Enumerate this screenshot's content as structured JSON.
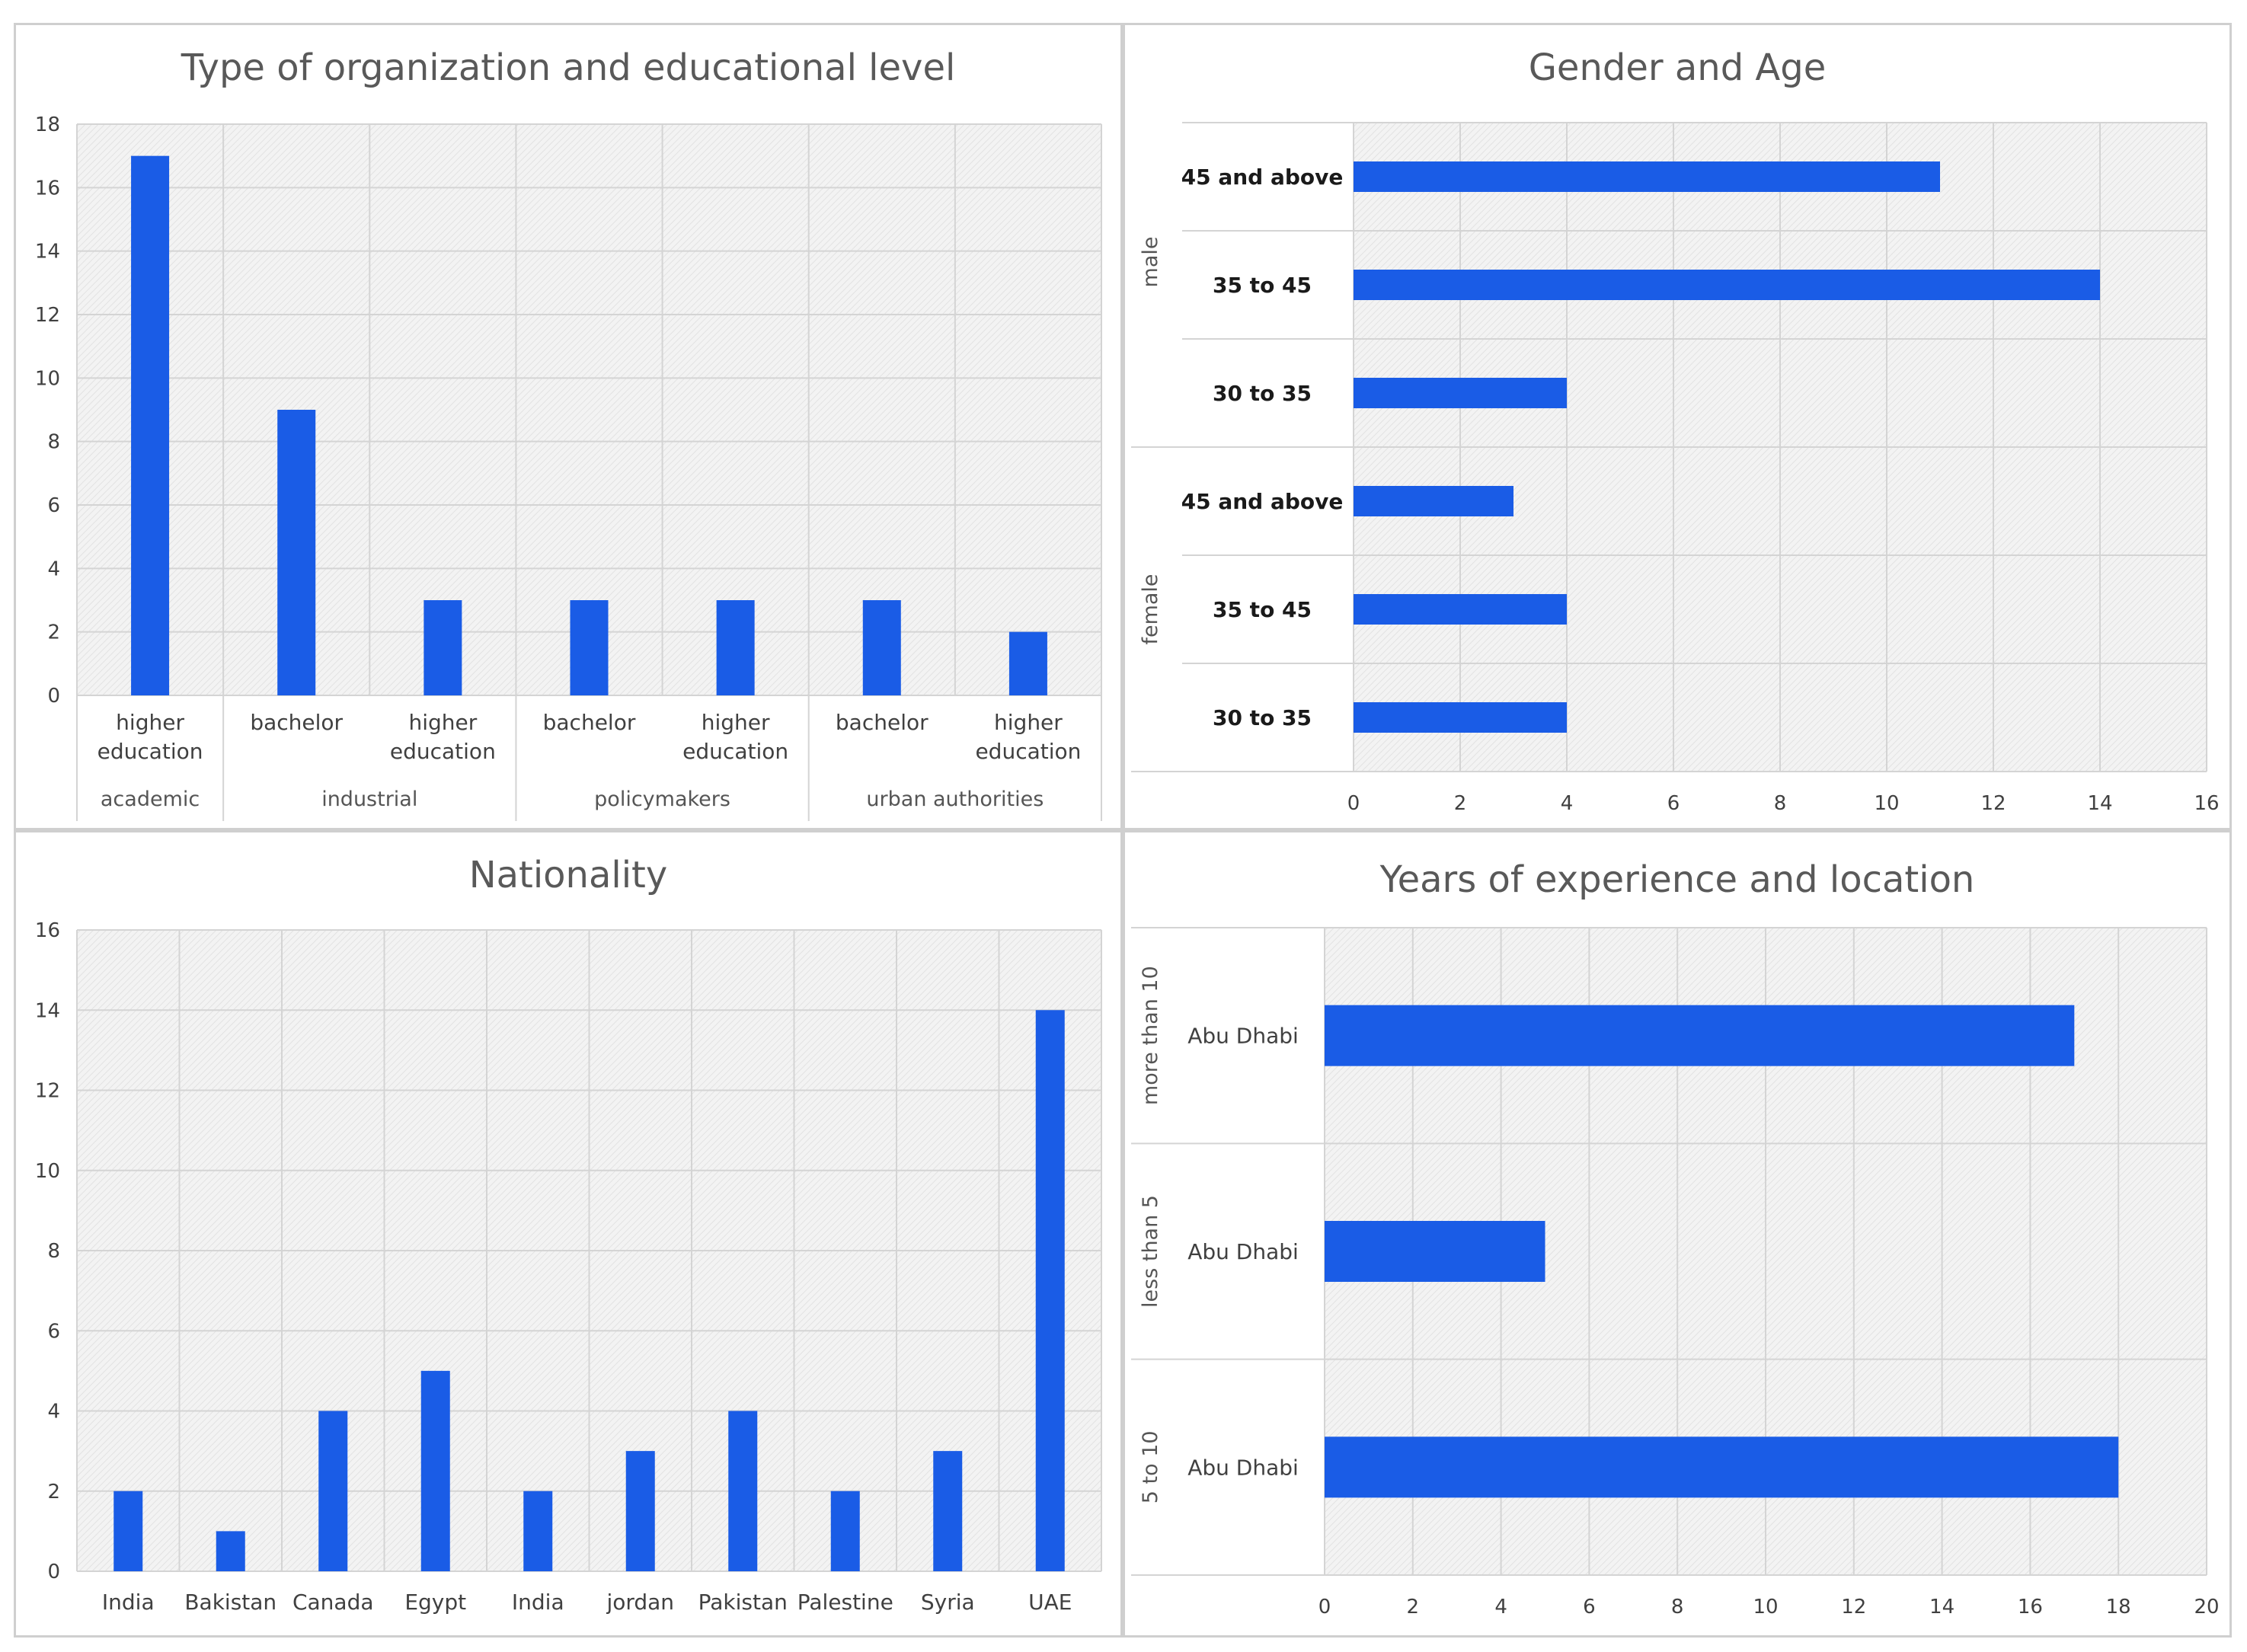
{
  "chart_data": [
    {
      "type": "bar",
      "title": "Type of organization and educational level",
      "categories": [
        "higher education",
        "bachelor",
        "higher education",
        "bachelor",
        "higher education",
        "bachelor",
        "higher education"
      ],
      "groups": [
        {
          "label": "academic",
          "count": 1
        },
        {
          "label": "industrial",
          "count": 2
        },
        {
          "label": "policymakers",
          "count": 2
        },
        {
          "label": "urban authorities",
          "count": 2
        }
      ],
      "values": [
        17,
        9,
        3,
        3,
        3,
        3,
        2
      ],
      "ylim": [
        0,
        18
      ],
      "yticks": [
        0,
        2,
        4,
        6,
        8,
        10,
        12,
        14,
        16,
        18
      ]
    },
    {
      "type": "bar",
      "orientation": "horizontal",
      "title": "Gender and Age",
      "categories": [
        "45 and above",
        "35 to 45",
        "30 to 35",
        "45 and above",
        "35 to 45",
        "30 to 35"
      ],
      "groups": [
        {
          "label": "male",
          "count": 3
        },
        {
          "label": "female",
          "count": 3
        }
      ],
      "values": [
        11,
        14,
        4,
        3,
        4,
        4
      ],
      "xlim": [
        0,
        16
      ],
      "xticks": [
        0,
        2,
        4,
        6,
        8,
        10,
        12,
        14,
        16
      ]
    },
    {
      "type": "bar",
      "title": "Nationality",
      "categories": [
        "India",
        "Bakistan",
        "Canada",
        "Egypt",
        "India",
        "jordan",
        "Pakistan",
        "Palestine",
        "Syria",
        "UAE"
      ],
      "values": [
        2,
        1,
        4,
        5,
        2,
        3,
        4,
        2,
        3,
        14
      ],
      "ylim": [
        0,
        16
      ],
      "yticks": [
        0,
        2,
        4,
        6,
        8,
        10,
        12,
        14,
        16
      ]
    },
    {
      "type": "bar",
      "orientation": "horizontal",
      "title": "Years of experience and location",
      "categories": [
        "Abu Dhabi",
        "Abu Dhabi",
        "Abu Dhabi"
      ],
      "groups": [
        {
          "label": "more than 10",
          "count": 1
        },
        {
          "label": "less than 5",
          "count": 1
        },
        {
          "label": "5 to 10",
          "count": 1
        }
      ],
      "values": [
        17,
        5,
        18
      ],
      "xlim": [
        0,
        20
      ],
      "xticks": [
        0,
        2,
        4,
        6,
        8,
        10,
        12,
        14,
        16,
        18,
        20
      ]
    }
  ],
  "colors": {
    "bar": "#1a5ce6",
    "grid": "#d4d4d4",
    "plot_bg": "#f0f0f0"
  }
}
